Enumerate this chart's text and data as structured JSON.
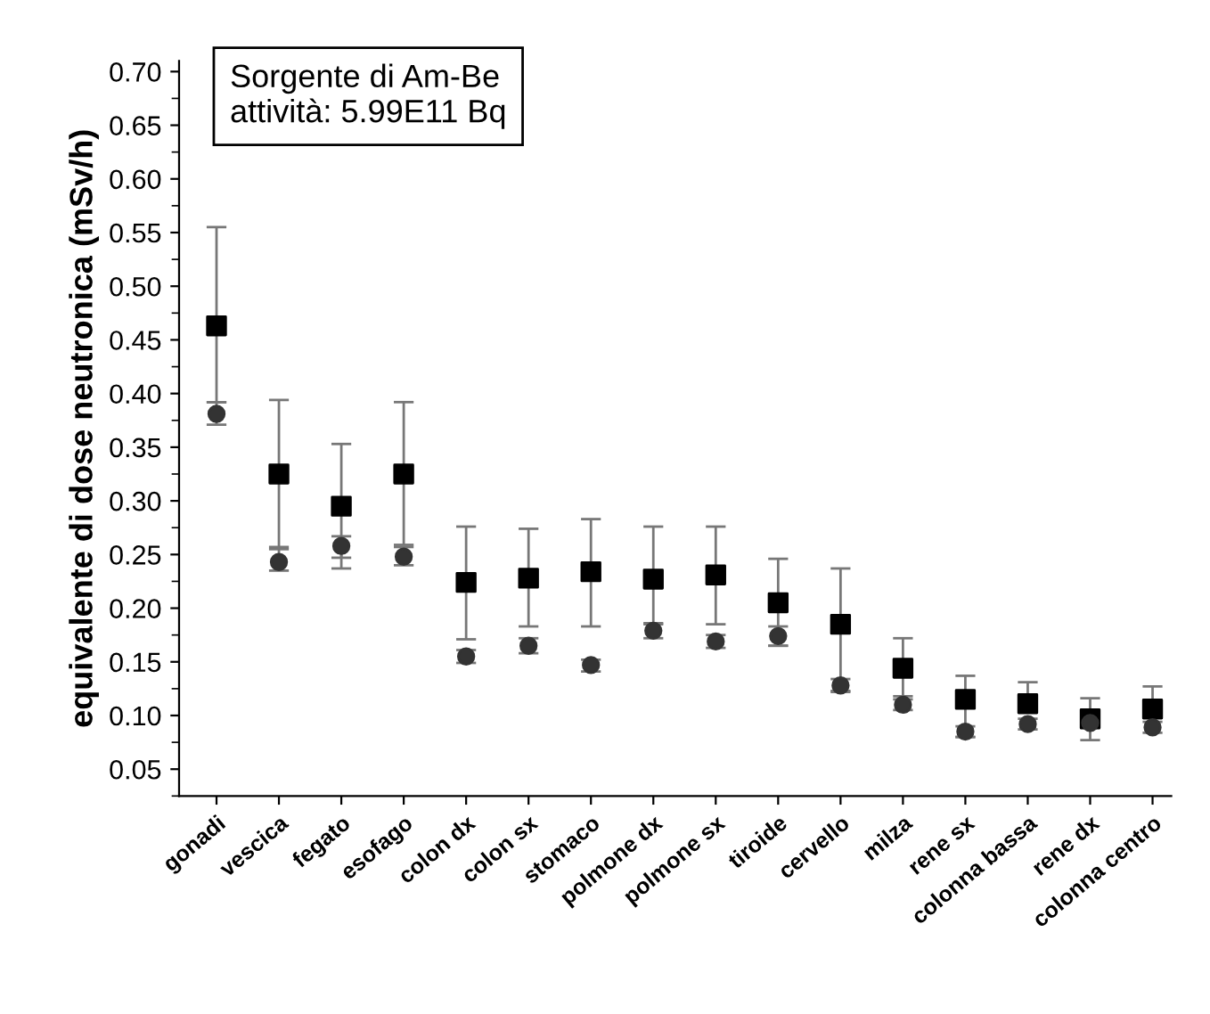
{
  "chart_data": {
    "type": "scatter",
    "ylabel": "equivalente di dose neutronica (mSv/h)",
    "annotations": [
      "Sorgente di Am-Be\nattività: 5.99E11 Bq"
    ],
    "categories": [
      "gonadi",
      "vescica",
      "fegato",
      "esofago",
      "colon dx",
      "colon sx",
      "stomaco",
      "polmone dx",
      "polmone sx",
      "tiroide",
      "cervello",
      "milza",
      "rene sx",
      "colonna bassa",
      "rene dx",
      "colonna centro"
    ],
    "series": [
      {
        "color": "#000000",
        "marker": "square",
        "values": [
          0.463,
          0.325,
          0.295,
          0.325,
          0.224,
          0.228,
          0.234,
          0.227,
          0.231,
          0.205,
          0.185,
          0.144,
          0.115,
          0.111,
          0.097,
          0.106
        ],
        "errors": [
          [
            0.392,
            0.555
          ],
          [
            0.257,
            0.394
          ],
          [
            0.237,
            0.353
          ],
          [
            0.259,
            0.392
          ],
          [
            0.171,
            0.276
          ],
          [
            0.183,
            0.274
          ],
          [
            0.183,
            0.283
          ],
          [
            0.185,
            0.276
          ],
          [
            0.185,
            0.276
          ],
          [
            0.165,
            0.246
          ],
          [
            0.123,
            0.237
          ],
          [
            0.118,
            0.172
          ],
          [
            0.08,
            0.137
          ],
          [
            0.111,
            0.131
          ],
          [
            0.077,
            0.116
          ],
          [
            0.106,
            0.127
          ]
        ]
      },
      {
        "color": "#333333",
        "marker": "circle",
        "values": [
          0.381,
          0.243,
          0.258,
          0.248,
          0.155,
          0.165,
          0.147,
          0.179,
          0.169,
          0.174,
          0.128,
          0.11,
          0.085,
          0.092,
          0.093,
          0.089
        ],
        "errors": [
          [
            0.371,
            0.392
          ],
          [
            0.235,
            0.255
          ],
          [
            0.247,
            0.267
          ],
          [
            0.24,
            0.257
          ],
          [
            0.149,
            0.161
          ],
          [
            0.158,
            0.172
          ],
          [
            0.141,
            0.152
          ],
          [
            0.172,
            0.186
          ],
          [
            0.163,
            0.175
          ],
          [
            0.165,
            0.183
          ],
          [
            0.122,
            0.134
          ],
          [
            0.105,
            0.115
          ],
          [
            0.08,
            0.09
          ],
          [
            0.087,
            0.097
          ],
          [
            0.088,
            0.098
          ],
          [
            0.084,
            0.094
          ]
        ]
      }
    ],
    "ylim": [
      0.025,
      0.71
    ],
    "yticks": [
      {
        "value": 0.05,
        "label": "0.05"
      },
      {
        "value": 0.1,
        "label": "0.10"
      },
      {
        "value": 0.15,
        "label": "0.15"
      },
      {
        "value": 0.2,
        "label": "0.20"
      },
      {
        "value": 0.25,
        "label": "0.25"
      },
      {
        "value": 0.3,
        "label": "0.30"
      },
      {
        "value": 0.35,
        "label": "0.35"
      },
      {
        "value": 0.4,
        "label": "0.40"
      },
      {
        "value": 0.45,
        "label": "0.45"
      },
      {
        "value": 0.5,
        "label": "0.50"
      },
      {
        "value": 0.55,
        "label": "0.55"
      },
      {
        "value": 0.6,
        "label": "0.60"
      },
      {
        "value": 0.65,
        "label": "0.65"
      },
      {
        "value": 0.7,
        "label": "0.70"
      }
    ],
    "grid": false
  }
}
